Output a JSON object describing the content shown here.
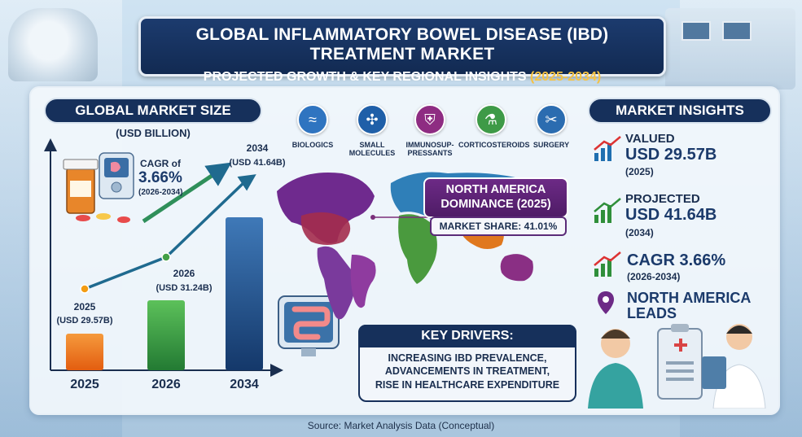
{
  "header": {
    "title": "GLOBAL INFLAMMATORY BOWEL DISEASE (IBD) TREATMENT MARKET",
    "subtitle_prefix": "PROJECTED GROWTH & KEY REGIONAL INSIGHTS",
    "subtitle_years": "(2025-2034)"
  },
  "market_size": {
    "heading": "GLOBAL MARKET SIZE",
    "unit": "(USD BILLION)",
    "cagr_label": "CAGR of",
    "cagr_value": "3.66%",
    "cagr_period": "(2026-2034)"
  },
  "chart_data": {
    "type": "bar",
    "title": "GLOBAL MARKET SIZE",
    "ylabel": "(USD BILLION)",
    "categories": [
      "2025",
      "2026",
      "2034"
    ],
    "values": [
      29.57,
      31.24,
      41.64
    ],
    "point_labels": [
      {
        "year": "2025",
        "value": "(USD 29.57B)"
      },
      {
        "year": "2026",
        "value": "(USD 31.24B)"
      },
      {
        "year": "2034",
        "value": "(USD 41.64B)"
      }
    ],
    "bar_colors": [
      "#ef6c1a",
      "#2f9e44",
      "#1f4f8f"
    ],
    "trend_markers": [
      "#f39c12",
      "#43a047",
      "#1f4f8f"
    ]
  },
  "categories": [
    {
      "label": "BIOLOGICS",
      "icon": "dna-icon",
      "color": "#2f74c0"
    },
    {
      "label": "SMALL MOLECULES",
      "icon": "molecule-icon",
      "color": "#1f5fa8"
    },
    {
      "label": "IMMUNOSUP-PRESSANTS",
      "icon": "shield-icon",
      "color": "#8e2c82"
    },
    {
      "label": "CORTICOSTEROIDS",
      "icon": "flask-icon",
      "color": "#3e9a47"
    },
    {
      "label": "SURGERY",
      "icon": "scalpel-icon",
      "color": "#2b6cb0"
    }
  ],
  "map": {
    "region_title": "NORTH AMERICA DOMINANCE (2025)",
    "share": "MARKET SHARE: 41.01%"
  },
  "drivers": {
    "heading": "KEY DRIVERS:",
    "lines": [
      "INCREASING IBD PREVALENCE,",
      "ADVANCEMENTS IN TREATMENT,",
      "RISE IN HEALTHCARE EXPENDITURE"
    ]
  },
  "insights": {
    "heading": "MARKET INSIGHTS",
    "valued_label": "VALUED",
    "valued_value": "USD 29.57B",
    "valued_year": "(2025)",
    "projected_label": "PROJECTED",
    "projected_value": "USD 41.64B",
    "projected_year": "(2034)",
    "cagr_value": "CAGR 3.66%",
    "cagr_period": "(2026-2034)",
    "leader_line1": "NORTH AMERICA",
    "leader_line2": "LEADS"
  },
  "source": "Source: Market Analysis Data (Conceptual)"
}
